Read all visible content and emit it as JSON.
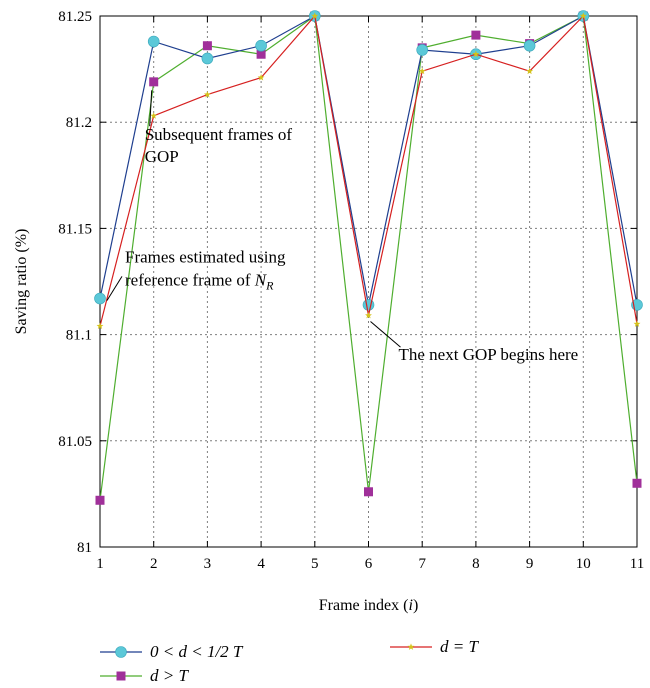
{
  "chart_data": {
    "type": "line",
    "xlabel": "Frame index (i)",
    "xlabel_prefix": "Frame index (",
    "xlabel_var": "i",
    "xlabel_suffix": ")",
    "ylabel": "Saving ratio (%)",
    "x": [
      1,
      2,
      3,
      4,
      5,
      6,
      7,
      8,
      9,
      10,
      11
    ],
    "xlim": [
      1,
      11
    ],
    "ylim": [
      81,
      81.25
    ],
    "xticks": [
      1,
      2,
      3,
      4,
      5,
      6,
      7,
      8,
      9,
      10,
      11
    ],
    "yticks": [
      81,
      81.05,
      81.1,
      81.15,
      81.2,
      81.25
    ],
    "ytick_labels": [
      "81",
      "81.05",
      "81.1",
      "81.15",
      "81.2",
      "81.25"
    ],
    "grid": true,
    "legend_position": "bottom",
    "series": [
      {
        "name": "0 < d < 1/2 T",
        "color": "#1f3f8f",
        "marker": "circle",
        "marker_color": "#5bc8d8",
        "values": [
          81.117,
          81.238,
          81.23,
          81.236,
          81.25,
          81.114,
          81.234,
          81.232,
          81.236,
          81.25,
          81.114
        ]
      },
      {
        "name": "d = T",
        "color": "#d62020",
        "marker": "star",
        "marker_color": "#d4c21a",
        "values": [
          81.104,
          81.203,
          81.213,
          81.221,
          81.25,
          81.109,
          81.224,
          81.232,
          81.224,
          81.25,
          81.105
        ]
      },
      {
        "name": "d > T",
        "color": "#4fae2f",
        "marker": "square",
        "marker_color": "#a0309a",
        "values": [
          81.022,
          81.219,
          81.236,
          81.232,
          81.25,
          81.026,
          81.235,
          81.241,
          81.237,
          81.25,
          81.03
        ]
      }
    ],
    "annotations": [
      {
        "id": "subsequent",
        "lines": [
          "Subsequent frames of",
          "GOP"
        ],
        "x": 2,
        "y": 81.2
      },
      {
        "id": "estimated",
        "line1": "Frames estimated using",
        "line2_prefix": "reference frame of ",
        "line2_var": "N",
        "line2_sub": "R",
        "x": 1,
        "y": 81.117
      },
      {
        "id": "next_gop",
        "lines": [
          "The next GOP begins here"
        ],
        "x": 6,
        "y": 81.109
      }
    ]
  }
}
